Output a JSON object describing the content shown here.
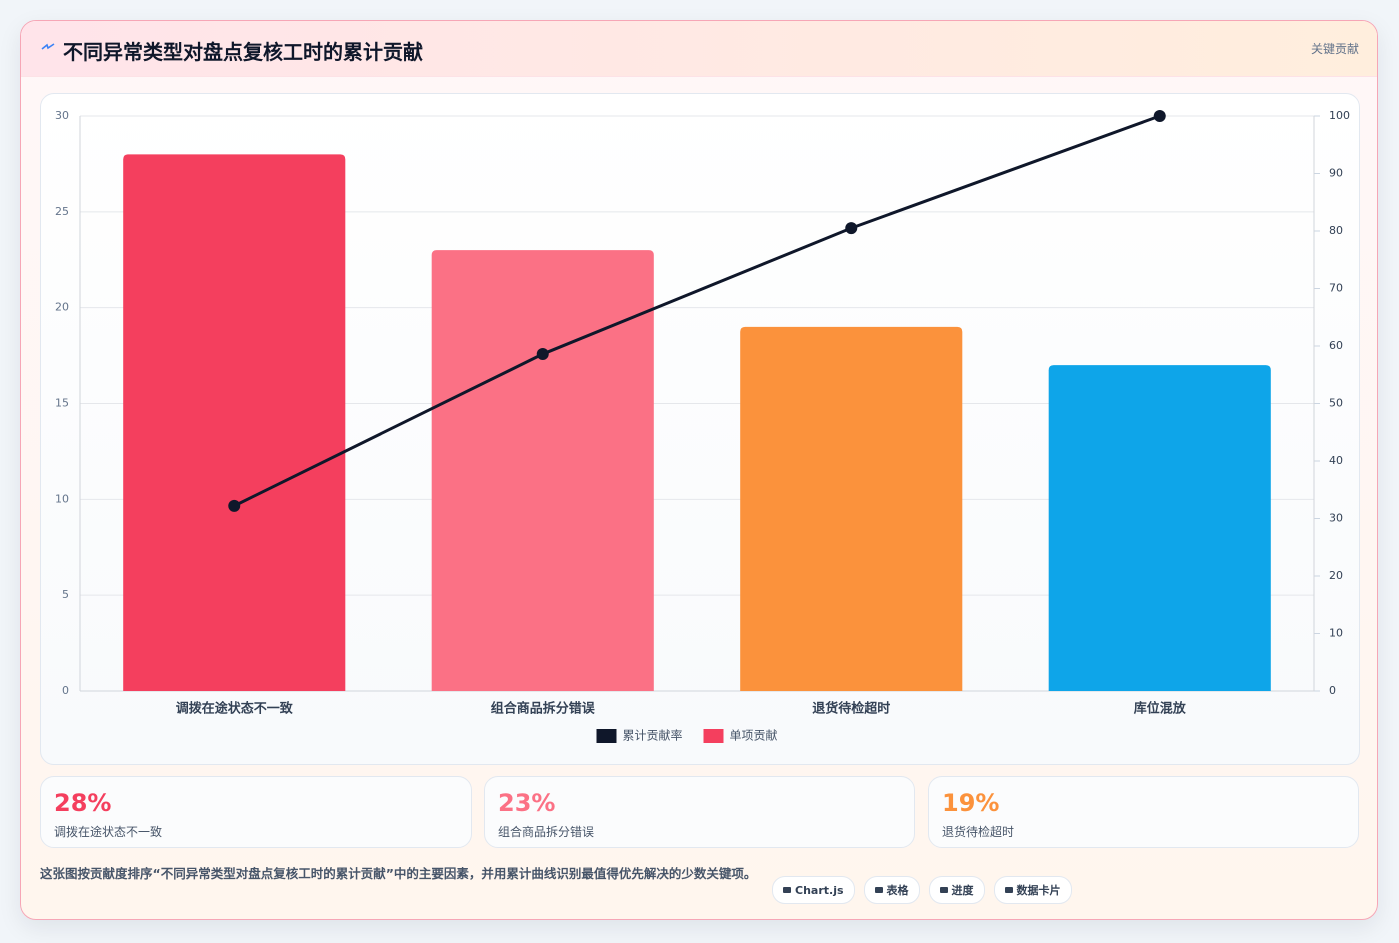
{
  "header": {
    "title": "不同异常类型对盘点复核工时的累计贡献",
    "badge": "关键贡献"
  },
  "chart_data": {
    "type": "pareto",
    "categories": [
      "调拨在途状态不一致",
      "组合商品拆分错误",
      "退货待检超时",
      "库位混放"
    ],
    "series": [
      {
        "name": "累计贡献率",
        "type": "line",
        "axis": "y2",
        "color": "#0f172a",
        "values": [
          32.2,
          58.6,
          80.5,
          100
        ]
      },
      {
        "name": "单项贡献",
        "type": "bar",
        "color": "#f43f5e",
        "colors": [
          "#f43f5e",
          "#fb7185",
          "#fb923c",
          "#0ea5e9"
        ],
        "values": [
          28,
          23,
          19,
          17
        ]
      }
    ],
    "ylim": [
      0,
      30
    ],
    "yticks": [
      0,
      5,
      10,
      15,
      20,
      25,
      30
    ],
    "y2lim": [
      0,
      100
    ],
    "y2ticks": [
      0,
      10,
      20,
      30,
      40,
      50,
      60,
      70,
      80,
      90,
      100
    ],
    "grid": true,
    "legend": "bottom"
  },
  "summary_cards": [
    {
      "value": "28%",
      "label": "调拨在途状态不一致",
      "color": "#f43f5e"
    },
    {
      "value": "23%",
      "label": "组合商品拆分错误",
      "color": "#fb7185"
    },
    {
      "value": "19%",
      "label": "退货待检超时",
      "color": "#fb923c"
    }
  ],
  "footer": {
    "note": "这张图按贡献度排序“不同异常类型对盘点复核工时的累计贡献”中的主要因素，并用累计曲线识别最值得优先解决的少数关键项。",
    "chips": [
      "Chart.js",
      "表格",
      "进度",
      "数据卡片"
    ]
  }
}
